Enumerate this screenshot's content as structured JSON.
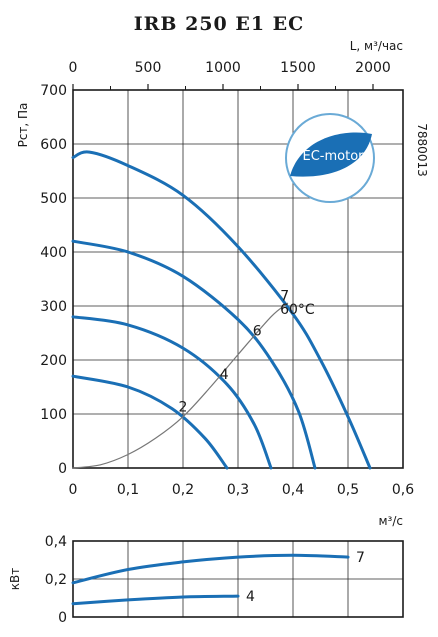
{
  "chart_data": [
    {
      "type": "line",
      "title": "IRB 250 E1 EC",
      "code": "7880013",
      "badge": "EC-motor",
      "xlabel": "м³/с",
      "ylabel": "Pст, Па",
      "x2label": "L, м³/час",
      "xlim": [
        0,
        0.6
      ],
      "ylim": [
        0,
        700
      ],
      "x2lim": [
        0,
        2200
      ],
      "xticks": [
        "0",
        "0,1",
        "0,2",
        "0,3",
        "0,4",
        "0,5",
        "0,6"
      ],
      "yticks": [
        "0",
        "100",
        "200",
        "300",
        "400",
        "500",
        "600",
        "700"
      ],
      "x2ticks": [
        "0",
        "500",
        "1000",
        "1500",
        "2000"
      ],
      "grid": true,
      "series": [
        {
          "name": "7",
          "color": "#1a6fb5",
          "x": [
            0.0,
            0.03,
            0.1,
            0.2,
            0.3,
            0.4,
            0.45,
            0.5,
            0.54
          ],
          "y": [
            575,
            585,
            560,
            505,
            410,
            285,
            200,
            95,
            0
          ]
        },
        {
          "name": "6",
          "color": "#1a6fb5",
          "x": [
            0.0,
            0.1,
            0.2,
            0.3,
            0.36,
            0.41,
            0.44
          ],
          "y": [
            420,
            400,
            355,
            275,
            200,
            105,
            0
          ]
        },
        {
          "name": "4",
          "color": "#1a6fb5",
          "x": [
            0.0,
            0.1,
            0.2,
            0.28,
            0.33,
            0.36
          ],
          "y": [
            280,
            265,
            222,
            155,
            80,
            0
          ]
        },
        {
          "name": "2",
          "color": "#1a6fb5",
          "x": [
            0.0,
            0.1,
            0.18,
            0.24,
            0.28
          ],
          "y": [
            170,
            150,
            110,
            55,
            0
          ]
        },
        {
          "name": "60°C",
          "color": "#777777",
          "x": [
            0.0,
            0.05,
            0.1,
            0.15,
            0.2,
            0.25,
            0.3,
            0.36,
            0.39
          ],
          "y": [
            0,
            6,
            25,
            55,
            95,
            150,
            210,
            280,
            305
          ]
        }
      ],
      "curve_labels": [
        {
          "text": "7",
          "x": 0.385,
          "y": 310
        },
        {
          "text": "60°C",
          "x": 0.408,
          "y": 285
        },
        {
          "text": "6",
          "x": 0.335,
          "y": 245
        },
        {
          "text": "4",
          "x": 0.275,
          "y": 165
        },
        {
          "text": "2",
          "x": 0.2,
          "y": 105
        }
      ]
    },
    {
      "type": "line",
      "ylabel": "кВт",
      "xlim": [
        0,
        0.6
      ],
      "ylim": [
        0,
        0.4
      ],
      "yticks": [
        "0",
        "0,2",
        "0,4"
      ],
      "grid": true,
      "series": [
        {
          "name": "7",
          "color": "#1a6fb5",
          "x": [
            0.0,
            0.1,
            0.2,
            0.3,
            0.4,
            0.5
          ],
          "y": [
            0.18,
            0.25,
            0.29,
            0.315,
            0.325,
            0.315
          ]
        },
        {
          "name": "4",
          "color": "#1a6fb5",
          "x": [
            0.0,
            0.1,
            0.2,
            0.3
          ],
          "y": [
            0.07,
            0.09,
            0.105,
            0.11
          ]
        }
      ]
    }
  ]
}
